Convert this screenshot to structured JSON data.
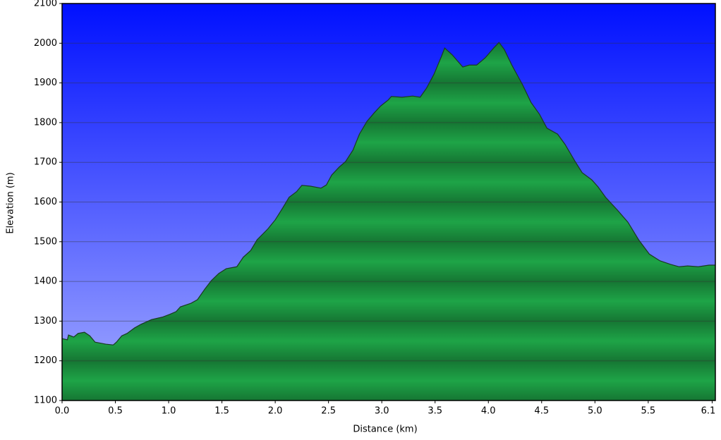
{
  "chart_data": {
    "type": "area",
    "x_label": "Distance  (km)",
    "y_label": "Elevation (m)",
    "x": [
      0,
      0.05,
      0.06,
      0.11,
      0.15,
      0.21,
      0.26,
      0.31,
      0.41,
      0.48,
      0.51,
      0.56,
      0.61,
      0.68,
      0.74,
      0.84,
      0.94,
      1.01,
      1.07,
      1.11,
      1.21,
      1.27,
      1.34,
      1.4,
      1.47,
      1.54,
      1.64,
      1.7,
      1.77,
      1.83,
      1.93,
      2.0,
      2.07,
      2.13,
      2.2,
      2.25,
      2.33,
      2.43,
      2.48,
      2.53,
      2.6,
      2.66,
      2.73,
      2.79,
      2.86,
      2.93,
      2.99,
      3.06,
      3.09,
      3.19,
      3.29,
      3.36,
      3.42,
      3.49,
      3.56,
      3.59,
      3.66,
      3.76,
      3.82,
      3.89,
      3.97,
      4.05,
      4.1,
      4.15,
      4.22,
      4.32,
      4.4,
      4.48,
      4.55,
      4.65,
      4.72,
      4.81,
      4.88,
      4.97,
      5.03,
      5.1,
      5.21,
      5.31,
      5.41,
      5.51,
      5.61,
      5.71,
      5.79,
      5.87,
      5.97,
      6.07,
      6.13
    ],
    "values": [
      1256,
      1253,
      1265,
      1260,
      1269,
      1272,
      1263,
      1247,
      1242,
      1240,
      1247,
      1263,
      1269,
      1283,
      1292,
      1304,
      1310,
      1317,
      1324,
      1336,
      1345,
      1354,
      1381,
      1402,
      1420,
      1432,
      1437,
      1461,
      1478,
      1505,
      1532,
      1555,
      1585,
      1612,
      1626,
      1642,
      1640,
      1635,
      1643,
      1668,
      1688,
      1702,
      1731,
      1771,
      1803,
      1825,
      1842,
      1857,
      1866,
      1864,
      1867,
      1864,
      1887,
      1922,
      1967,
      1988,
      1971,
      1940,
      1945,
      1945,
      1963,
      1988,
      2002,
      1984,
      1945,
      1896,
      1851,
      1821,
      1786,
      1771,
      1745,
      1704,
      1674,
      1656,
      1638,
      1612,
      1580,
      1549,
      1505,
      1469,
      1452,
      1443,
      1437,
      1439,
      1437,
      1441,
      1441
    ],
    "color": "#1ea447",
    "xlim": [
      0,
      6.13
    ],
    "ylim": [
      1100,
      2100
    ],
    "xticks": [
      {
        "value": 0,
        "label": "0.0"
      },
      0.5,
      {
        "value": 1,
        "label": "1.0"
      },
      1.5,
      {
        "value": 2,
        "label": "2.0"
      },
      2.5,
      {
        "value": 3,
        "label": "3.0"
      },
      3.5,
      {
        "value": 4,
        "label": "4.0"
      },
      4.5,
      {
        "value": 5,
        "label": "5.0"
      },
      5.5,
      6.1
    ],
    "yticks": [
      1100,
      1200,
      1300,
      1400,
      1500,
      1600,
      1700,
      1800,
      1900,
      2000,
      2100
    ],
    "grid": true
  }
}
